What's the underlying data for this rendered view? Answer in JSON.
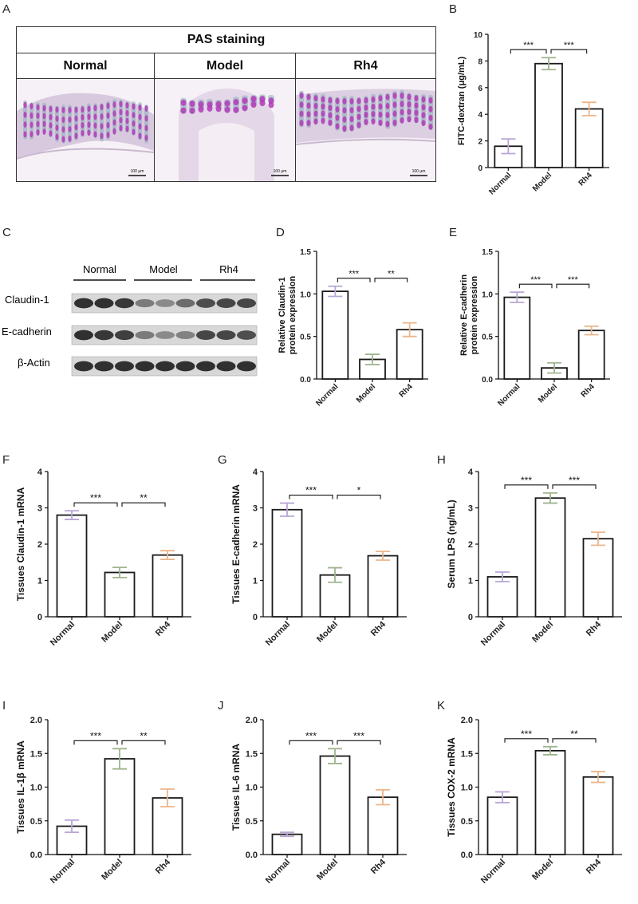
{
  "panels": {
    "A": "A",
    "B": "B",
    "C": "C",
    "D": "D",
    "E": "E",
    "F": "F",
    "G": "G",
    "H": "H",
    "I": "I",
    "J": "J",
    "K": "K"
  },
  "histology": {
    "title": "PAS staining",
    "groups": [
      "Normal",
      "Model",
      "Rh4"
    ],
    "scale_bar": "100 μm"
  },
  "western_blot": {
    "groups": [
      "Normal",
      "Model",
      "Rh4"
    ],
    "proteins": [
      "Claudin-1",
      "E-cadherin",
      "β-Actin"
    ]
  },
  "colors": {
    "Normal": "#b9a6d6",
    "Model": "#9fb58e",
    "Rh4": "#ecb58a",
    "bar_edge": "#1a1a1a",
    "stain_purple": "#b03ab8",
    "stain_teal": "#8aaeb8"
  },
  "chart_data": [
    {
      "id": "B",
      "type": "bar",
      "categories": [
        "Normal",
        "Model",
        "Rh4"
      ],
      "values": [
        1.6,
        7.8,
        4.4
      ],
      "errors": [
        0.55,
        0.45,
        0.5
      ],
      "ylabel": "FITC-dextran (μg/mL)",
      "ylim": [
        0,
        10
      ],
      "yticks": [
        "0",
        "2",
        "4",
        "6",
        "8",
        "10"
      ],
      "significance": [
        {
          "from": 0,
          "to": 1,
          "label": "***"
        },
        {
          "from": 1,
          "to": 2,
          "label": "***"
        }
      ]
    },
    {
      "id": "D",
      "type": "bar",
      "categories": [
        "Normal",
        "Model",
        "Rh4"
      ],
      "values": [
        1.03,
        0.23,
        0.58
      ],
      "errors": [
        0.06,
        0.06,
        0.08
      ],
      "ylabel": "Relative Claudin-1 protein expression",
      "ylim": [
        0,
        1.5
      ],
      "yticks": [
        "0.0",
        "0.5",
        "1.0",
        "1.5"
      ],
      "significance": [
        {
          "from": 0,
          "to": 1,
          "label": "***"
        },
        {
          "from": 1,
          "to": 2,
          "label": "**"
        }
      ]
    },
    {
      "id": "E",
      "type": "bar",
      "categories": [
        "Normal",
        "Model",
        "Rh4"
      ],
      "values": [
        0.96,
        0.13,
        0.57
      ],
      "errors": [
        0.06,
        0.06,
        0.05
      ],
      "ylabel": "Relative E-cadherin protein expression",
      "ylim": [
        0,
        1.5
      ],
      "yticks": [
        "0.0",
        "0.5",
        "1.0",
        "1.5"
      ],
      "significance": [
        {
          "from": 0,
          "to": 1,
          "label": "***"
        },
        {
          "from": 1,
          "to": 2,
          "label": "***"
        }
      ]
    },
    {
      "id": "F",
      "type": "bar",
      "categories": [
        "Normal",
        "Model",
        "Rh4"
      ],
      "values": [
        2.8,
        1.22,
        1.7
      ],
      "errors": [
        0.12,
        0.14,
        0.12
      ],
      "ylabel": "Tissues Claudin-1 mRNA",
      "ylim": [
        0,
        4
      ],
      "yticks": [
        "0",
        "1",
        "2",
        "3",
        "4"
      ],
      "significance": [
        {
          "from": 0,
          "to": 1,
          "label": "***"
        },
        {
          "from": 1,
          "to": 2,
          "label": "**"
        }
      ]
    },
    {
      "id": "G",
      "type": "bar",
      "categories": [
        "Normal",
        "Model",
        "Rh4"
      ],
      "values": [
        2.95,
        1.15,
        1.68
      ],
      "errors": [
        0.18,
        0.2,
        0.12
      ],
      "ylabel": "Tissues E-cadherin mRNA",
      "ylim": [
        0,
        4
      ],
      "yticks": [
        "0",
        "1",
        "2",
        "3",
        "4"
      ],
      "significance": [
        {
          "from": 0,
          "to": 1,
          "label": "***"
        },
        {
          "from": 1,
          "to": 2,
          "label": "*"
        }
      ]
    },
    {
      "id": "H",
      "type": "bar",
      "categories": [
        "Normal",
        "Model",
        "Rh4"
      ],
      "values": [
        1.1,
        3.27,
        2.15
      ],
      "errors": [
        0.13,
        0.14,
        0.18
      ],
      "ylabel": "Serum LPS (ng/mL)",
      "ylim": [
        0,
        4
      ],
      "yticks": [
        "0",
        "1",
        "2",
        "3",
        "4"
      ],
      "significance": [
        {
          "from": 0,
          "to": 1,
          "label": "***"
        },
        {
          "from": 1,
          "to": 2,
          "label": "***"
        }
      ]
    },
    {
      "id": "I",
      "type": "bar",
      "categories": [
        "Normal",
        "Model",
        "Rh4"
      ],
      "values": [
        0.42,
        1.42,
        0.84
      ],
      "errors": [
        0.09,
        0.15,
        0.13
      ],
      "ylabel": "Tissues IL-1β mRNA",
      "ylim": [
        0,
        2.0
      ],
      "yticks": [
        "0.0",
        "0.5",
        "1.0",
        "1.5",
        "2.0"
      ],
      "significance": [
        {
          "from": 0,
          "to": 1,
          "label": "***"
        },
        {
          "from": 1,
          "to": 2,
          "label": "**"
        }
      ]
    },
    {
      "id": "J",
      "type": "bar",
      "categories": [
        "Normal",
        "Model",
        "Rh4"
      ],
      "values": [
        0.3,
        1.46,
        0.85
      ],
      "errors": [
        0.03,
        0.11,
        0.11
      ],
      "ylabel": "Tissues  IL-6 mRNA",
      "ylim": [
        0,
        2.0
      ],
      "yticks": [
        "0.0",
        "0.5",
        "1.0",
        "1.5",
        "2.0"
      ],
      "significance": [
        {
          "from": 0,
          "to": 1,
          "label": "***"
        },
        {
          "from": 1,
          "to": 2,
          "label": "***"
        }
      ]
    },
    {
      "id": "K",
      "type": "bar",
      "categories": [
        "Normal",
        "Model",
        "Rh4"
      ],
      "values": [
        0.85,
        1.54,
        1.15
      ],
      "errors": [
        0.08,
        0.06,
        0.08
      ],
      "ylabel": "Tissues COX-2 mRNA",
      "ylim": [
        0,
        2.0
      ],
      "yticks": [
        "0.0",
        "0.5",
        "1.0",
        "1.5",
        "2.0"
      ],
      "significance": [
        {
          "from": 0,
          "to": 1,
          "label": "***"
        },
        {
          "from": 1,
          "to": 2,
          "label": "**"
        }
      ]
    }
  ]
}
